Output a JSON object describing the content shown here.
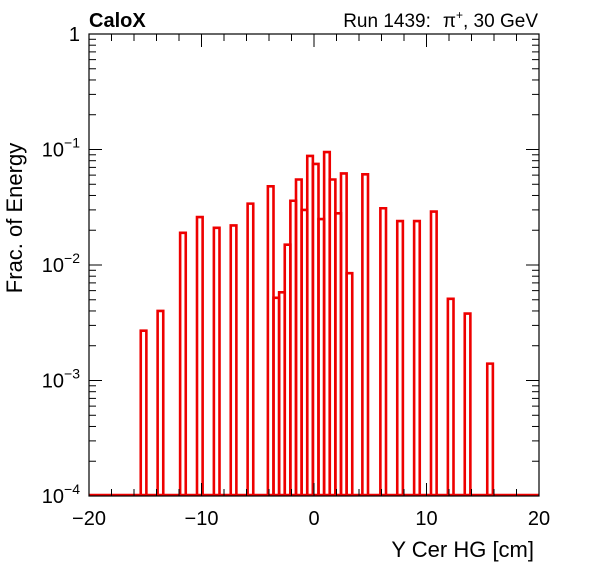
{
  "header": {
    "experiment": "CaloX",
    "run_prefix": "Run 1439:",
    "particle_symbol": "π",
    "particle_charge": "+",
    "energy": ", 30 GeV"
  },
  "colors": {
    "series": "#ee0000",
    "axis": "#000000"
  },
  "chart_data": {
    "type": "histogram",
    "xlabel": "Y Cer HG [cm]",
    "ylabel": "Frac. of Energy",
    "xlim": [
      -20,
      20
    ],
    "ylim": [
      0.0001,
      1
    ],
    "yscale": "log",
    "x_ticks": [
      -20,
      -10,
      0,
      10,
      20
    ],
    "x_tick_labels": [
      "−20",
      "−10",
      "0",
      "10",
      "20"
    ],
    "y_ticks": [
      {
        "value": 1,
        "base": "1",
        "exp": ""
      },
      {
        "value": 0.1,
        "base": "10",
        "exp": "−1"
      },
      {
        "value": 0.01,
        "base": "10",
        "exp": "−2"
      },
      {
        "value": 0.001,
        "base": "10",
        "exp": "−3"
      },
      {
        "value": 0.0001,
        "base": "10",
        "exp": "−4"
      }
    ],
    "grid": false,
    "series": [
      {
        "bins": [
          {
            "x0": -15.4,
            "x1": -14.9,
            "y": 0.0027
          },
          {
            "x0": -13.9,
            "x1": -13.4,
            "y": 0.004
          },
          {
            "x0": -11.9,
            "x1": -11.4,
            "y": 0.019
          },
          {
            "x0": -10.4,
            "x1": -9.9,
            "y": 0.026
          },
          {
            "x0": -8.9,
            "x1": -8.4,
            "y": 0.021
          },
          {
            "x0": -7.4,
            "x1": -6.9,
            "y": 0.022
          },
          {
            "x0": -5.9,
            "x1": -5.4,
            "y": 0.034
          },
          {
            "x0": -4.1,
            "x1": -3.6,
            "y": 0.048
          },
          {
            "x0": -3.6,
            "x1": -3.1,
            "y": 0.0052
          },
          {
            "x0": -3.1,
            "x1": -2.6,
            "y": 0.0058
          },
          {
            "x0": -2.6,
            "x1": -2.1,
            "y": 0.015
          },
          {
            "x0": -2.1,
            "x1": -1.6,
            "y": 0.036
          },
          {
            "x0": -1.6,
            "x1": -1.1,
            "y": 0.055
          },
          {
            "x0": -1.1,
            "x1": -0.6,
            "y": 0.03
          },
          {
            "x0": -0.6,
            "x1": -0.1,
            "y": 0.088
          },
          {
            "x0": -0.1,
            "x1": 0.4,
            "y": 0.075
          },
          {
            "x0": 0.4,
            "x1": 0.9,
            "y": 0.025
          },
          {
            "x0": 0.9,
            "x1": 1.4,
            "y": 0.095
          },
          {
            "x0": 1.4,
            "x1": 1.9,
            "y": 0.055
          },
          {
            "x0": 1.9,
            "x1": 2.4,
            "y": 0.028
          },
          {
            "x0": 2.4,
            "x1": 2.9,
            "y": 0.062
          },
          {
            "x0": 2.9,
            "x1": 3.4,
            "y": 0.0085
          },
          {
            "x0": 4.3,
            "x1": 4.8,
            "y": 0.061
          },
          {
            "x0": 5.9,
            "x1": 6.4,
            "y": 0.031
          },
          {
            "x0": 7.4,
            "x1": 7.9,
            "y": 0.024
          },
          {
            "x0": 8.9,
            "x1": 9.4,
            "y": 0.024
          },
          {
            "x0": 10.4,
            "x1": 10.9,
            "y": 0.029
          },
          {
            "x0": 11.9,
            "x1": 12.4,
            "y": 0.0051
          },
          {
            "x0": 13.4,
            "x1": 13.9,
            "y": 0.0038
          },
          {
            "x0": 15.4,
            "x1": 15.9,
            "y": 0.0014
          }
        ]
      }
    ]
  }
}
